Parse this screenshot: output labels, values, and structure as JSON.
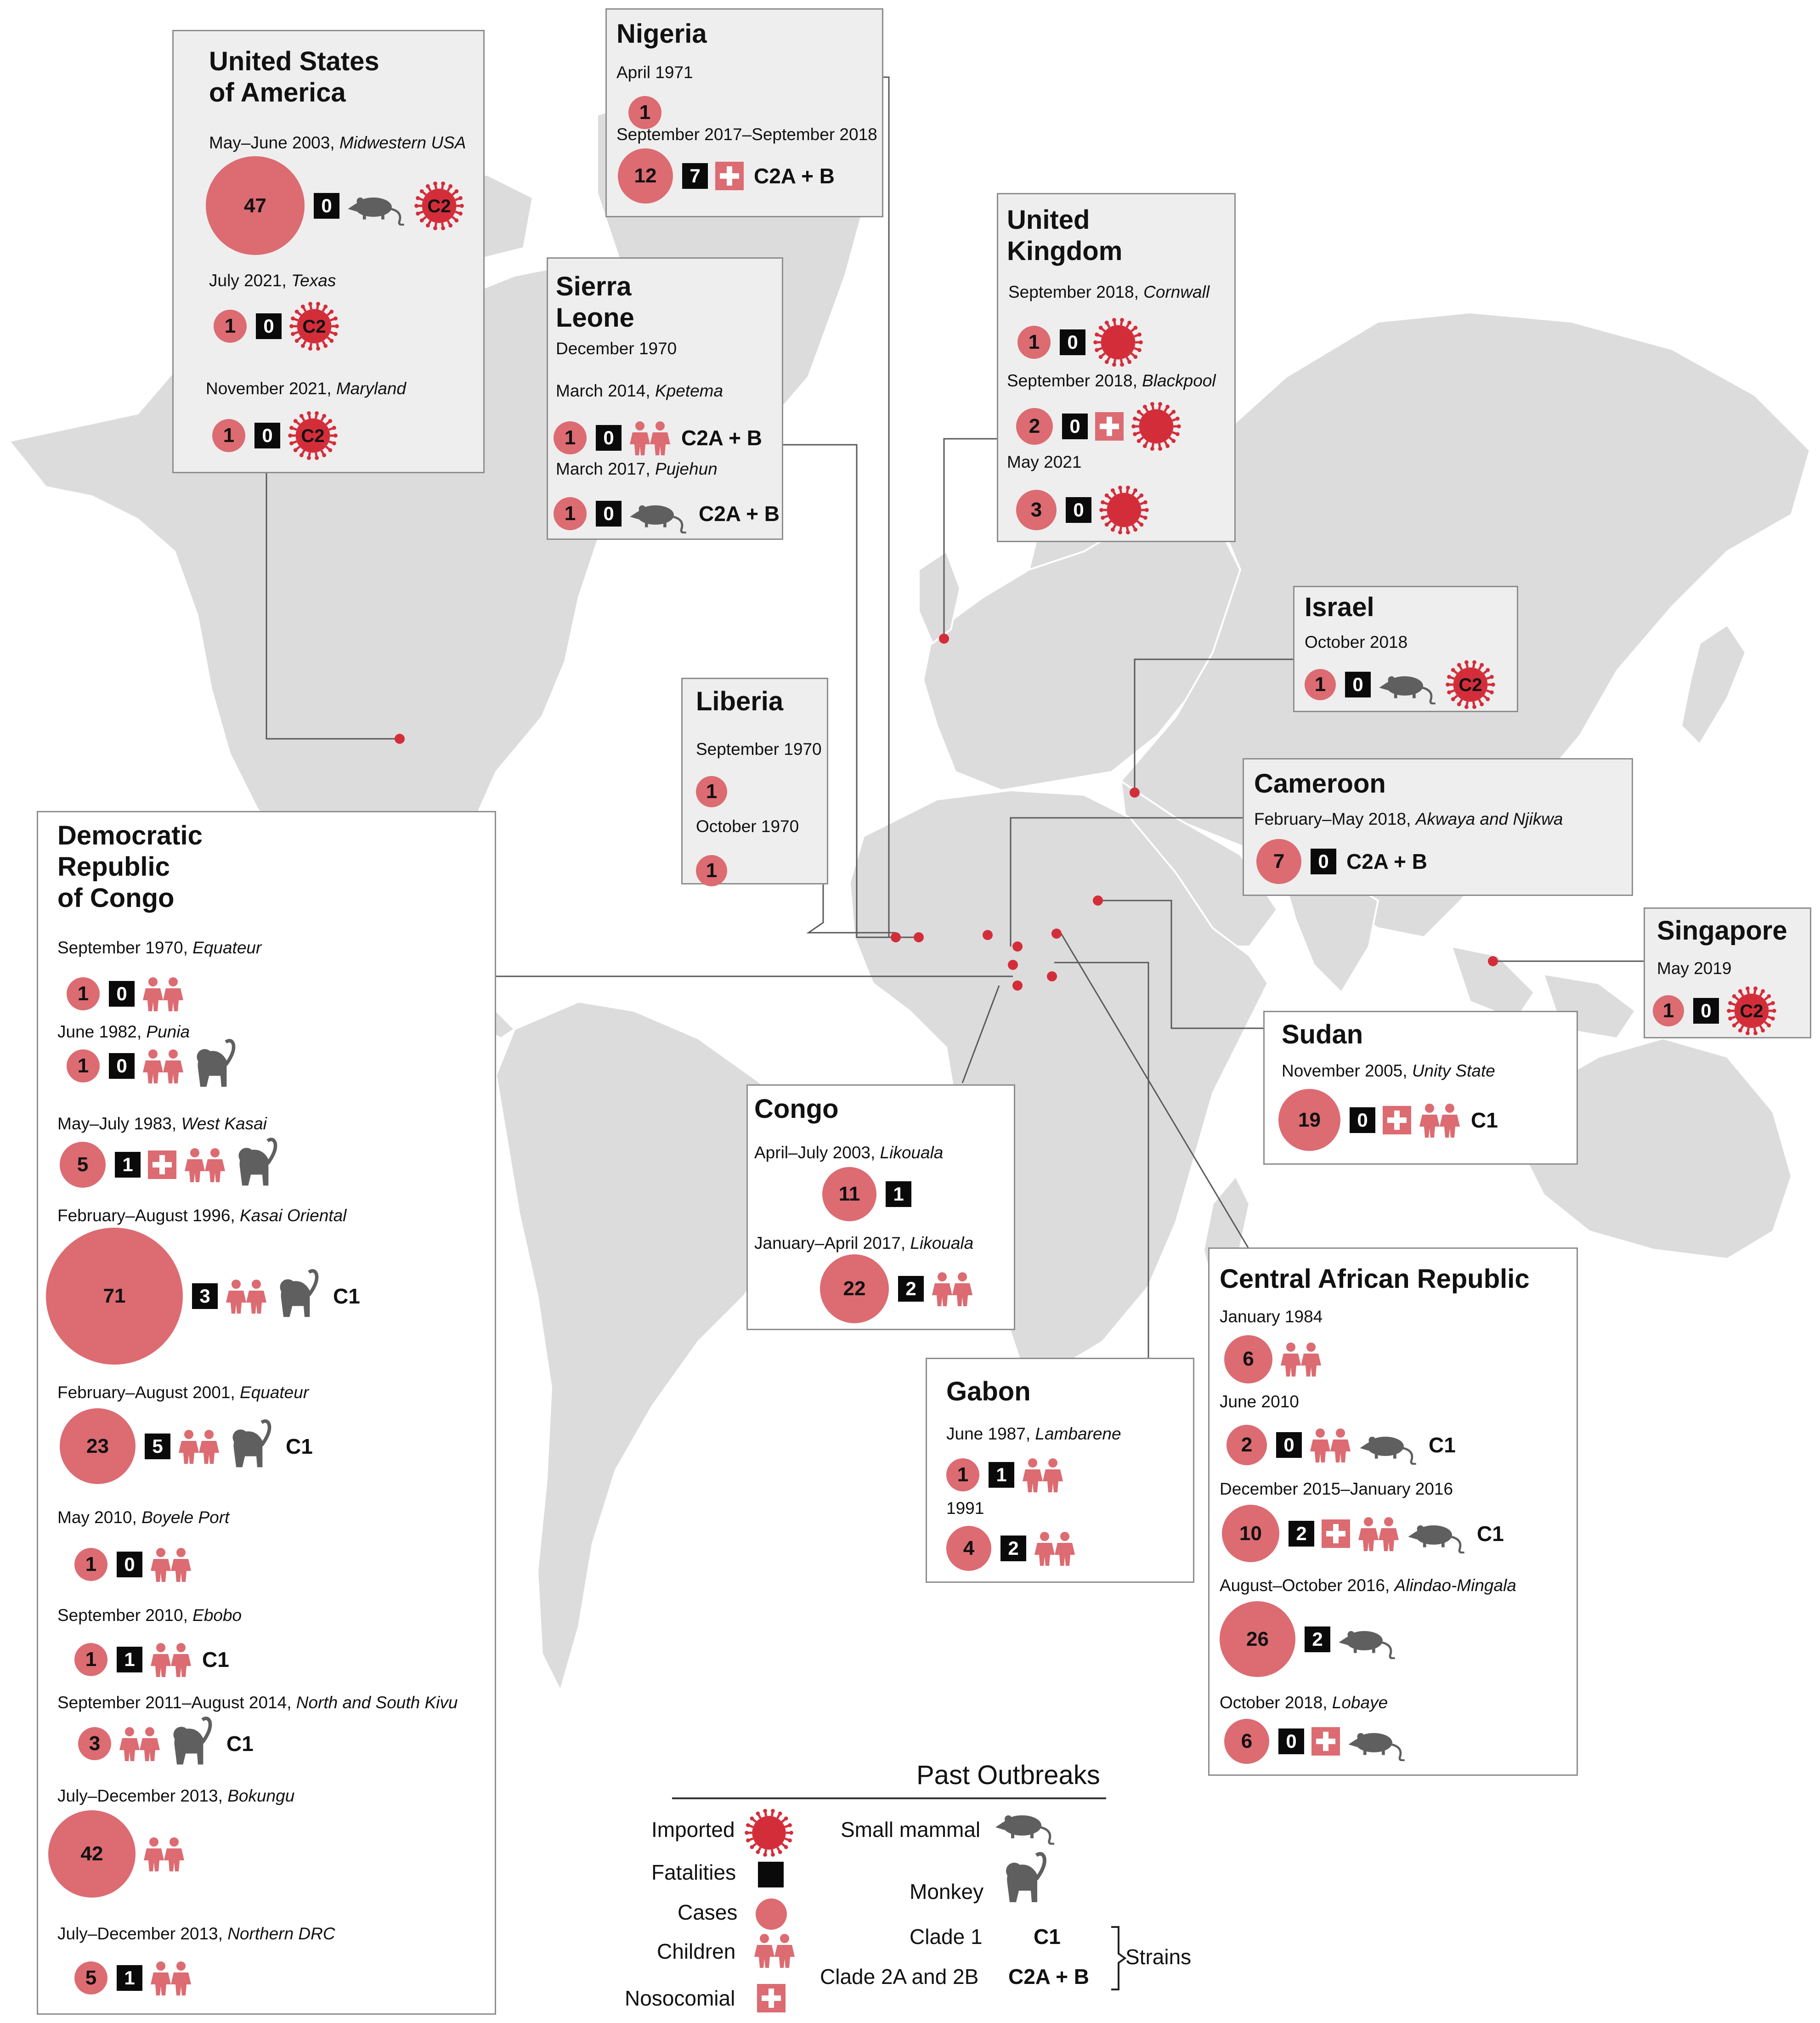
{
  "colors": {
    "case_fill": "#dc6b72",
    "imported_red": "#d42d3a",
    "fatality_black": "#0a0a0a",
    "animal_gray": "#5f5f5f",
    "land_gray": "#d9d9d9",
    "box_border": "#8e8e8e"
  },
  "icons": {
    "cases": "pink-circle-with-count",
    "fatalities": "black-square-with-count",
    "imported": "red-virus-icon",
    "children": "children-icon",
    "nosocomial": "hospital-cross-icon",
    "small_mammal": "rodent-icon",
    "monkey": "monkey-icon"
  },
  "countries": {
    "usa": {
      "title": "United States\nof America",
      "outbreaks": [
        {
          "date": "May–June 2003,",
          "place": "Midwestern USA",
          "cases": "47",
          "fatalities": "0",
          "icons": [
            "small_mammal",
            "imported"
          ],
          "imported_label": "C2"
        },
        {
          "date": "July 2021,",
          "place": "Texas",
          "cases": "1",
          "fatalities": "0",
          "icons": [
            "imported"
          ],
          "imported_label": "C2"
        },
        {
          "date": "November 2021,",
          "place": "Maryland",
          "cases": "1",
          "fatalities": "0",
          "icons": [
            "imported"
          ],
          "imported_label": "C2"
        }
      ]
    },
    "nigeria": {
      "title": "Nigeria",
      "outbreaks": [
        {
          "date": "April 1971",
          "place": "",
          "cases": "1"
        },
        {
          "date": "September 2017–September 2018",
          "place": "",
          "cases": "12",
          "fatalities": "7",
          "icons": [
            "nosocomial"
          ],
          "clade": "C2A + B"
        }
      ]
    },
    "sierra_leone": {
      "title": "Sierra\nLeone",
      "outbreaks": [
        {
          "date": "December 1970",
          "place": ""
        },
        {
          "date": "March 2014,",
          "place": "Kpetema",
          "cases": "1",
          "fatalities": "0",
          "icons": [
            "children"
          ],
          "clade": "C2A + B"
        },
        {
          "date": "March 2017,",
          "place": "Pujehun",
          "cases": "1",
          "fatalities": "0",
          "icons": [
            "small_mammal"
          ],
          "clade": "C2A + B"
        }
      ]
    },
    "uk": {
      "title": "United\nKingdom",
      "outbreaks": [
        {
          "date": "September 2018,",
          "place": "Cornwall",
          "cases": "1",
          "fatalities": "0",
          "icons": [
            "imported"
          ]
        },
        {
          "date": "September 2018,",
          "place": "Blackpool",
          "cases": "2",
          "fatalities": "0",
          "icons": [
            "nosocomial",
            "imported"
          ]
        },
        {
          "date": "May 2021",
          "place": "",
          "cases": "3",
          "fatalities": "0",
          "icons": [
            "imported"
          ]
        }
      ]
    },
    "israel": {
      "title": "Israel",
      "outbreaks": [
        {
          "date": "October 2018",
          "place": "",
          "cases": "1",
          "fatalities": "0",
          "icons": [
            "small_mammal",
            "imported"
          ],
          "imported_label": "C2"
        }
      ]
    },
    "liberia": {
      "title": "Liberia",
      "outbreaks": [
        {
          "date": "September 1970",
          "place": "",
          "cases": "1"
        },
        {
          "date": "October 1970",
          "place": "",
          "cases": "1"
        }
      ]
    },
    "cameroon": {
      "title": "Cameroon",
      "outbreaks": [
        {
          "date": "February–May 2018,",
          "place": "Akwaya and Njikwa",
          "cases": "7",
          "fatalities": "0",
          "clade": "C2A + B"
        }
      ]
    },
    "singapore": {
      "title": "Singapore",
      "outbreaks": [
        {
          "date": "May 2019",
          "place": "",
          "cases": "1",
          "fatalities": "0",
          "icons": [
            "imported"
          ],
          "imported_label": "C2"
        }
      ]
    },
    "drc": {
      "title": "Democratic\nRepublic\nof Congo",
      "outbreaks": [
        {
          "date": "September 1970,",
          "place": "Equateur",
          "cases": "1",
          "fatalities": "0",
          "icons": [
            "children"
          ]
        },
        {
          "date": "June 1982,",
          "place": "Punia",
          "cases": "1",
          "fatalities": "0",
          "icons": [
            "children",
            "monkey"
          ]
        },
        {
          "date": "May–July 1983,",
          "place": "West Kasai",
          "cases": "5",
          "fatalities": "1",
          "icons": [
            "nosocomial",
            "children",
            "monkey"
          ]
        },
        {
          "date": "February–August 1996,",
          "place": "Kasai Oriental",
          "cases": "71",
          "fatalities": "3",
          "icons": [
            "children",
            "monkey"
          ],
          "clade": "C1"
        },
        {
          "date": "February–August 2001,",
          "place": "Equateur",
          "cases": "23",
          "fatalities": "5",
          "icons": [
            "children",
            "monkey"
          ],
          "clade": "C1"
        },
        {
          "date": "May 2010,",
          "place": "Boyele Port",
          "cases": "1",
          "fatalities": "0",
          "icons": [
            "children"
          ]
        },
        {
          "date": "September 2010,",
          "place": "Ebobo",
          "cases": "1",
          "fatalities": "1",
          "icons": [
            "children"
          ],
          "clade": "C1"
        },
        {
          "date": "September 2011–August 2014,",
          "place": "North and South Kivu",
          "cases": "3",
          "icons": [
            "children",
            "monkey"
          ],
          "clade": "C1"
        },
        {
          "date": "July–December 2013,",
          "place": "Bokungu",
          "cases": "42",
          "icons": [
            "children"
          ]
        },
        {
          "date": "July–December 2013,",
          "place": "Northern DRC",
          "cases": "5",
          "fatalities": "1",
          "icons": [
            "children"
          ]
        }
      ]
    },
    "sudan": {
      "title": "Sudan",
      "outbreaks": [
        {
          "date": "November 2005,",
          "place": "Unity State",
          "cases": "19",
          "fatalities": "0",
          "icons": [
            "nosocomial",
            "children"
          ],
          "clade": "C1"
        }
      ]
    },
    "congo": {
      "title": "Congo",
      "outbreaks": [
        {
          "date": "April–July 2003,",
          "place": "Likouala",
          "cases": "11",
          "fatalities": "1"
        },
        {
          "date": "January–April 2017,",
          "place": "Likouala",
          "cases": "22",
          "fatalities": "2",
          "icons": [
            "children"
          ]
        }
      ]
    },
    "gabon": {
      "title": "Gabon",
      "outbreaks": [
        {
          "date": "June 1987,",
          "place": "Lambarene",
          "cases": "1",
          "fatalities": "1",
          "icons": [
            "children"
          ]
        },
        {
          "date": "1991",
          "place": "",
          "cases": "4",
          "fatalities": "2",
          "icons": [
            "children"
          ]
        }
      ]
    },
    "car": {
      "title": "Central African Republic",
      "outbreaks": [
        {
          "date": "January 1984",
          "place": "",
          "cases": "6",
          "icons": [
            "children"
          ]
        },
        {
          "date": "June 2010",
          "place": "",
          "cases": "2",
          "fatalities": "0",
          "icons": [
            "children",
            "small_mammal"
          ],
          "clade": "C1"
        },
        {
          "date": "December 2015–January 2016",
          "place": "",
          "cases": "10",
          "fatalities": "2",
          "icons": [
            "nosocomial",
            "children",
            "small_mammal"
          ],
          "clade": "C1"
        },
        {
          "date": "August–October 2016,",
          "place": "Alindao-Mingala",
          "cases": "26",
          "fatalities": "2",
          "icons": [
            "small_mammal"
          ]
        },
        {
          "date": "October 2018,",
          "place": "Lobaye",
          "cases": "6",
          "fatalities": "0",
          "icons": [
            "nosocomial",
            "small_mammal"
          ]
        }
      ]
    }
  },
  "legend": {
    "title": "Past Outbreaks",
    "imported": "Imported",
    "fatalities": "Fatalities",
    "cases": "Cases",
    "children": "Children",
    "nosocomial": "Nosocomial",
    "small_mammal": "Small mammal",
    "monkey": "Monkey",
    "clade1_name": "Clade 1",
    "clade1_code": "C1",
    "clade2_name": "Clade 2A and 2B",
    "clade2_code": "C2A + B",
    "strains": "Strains"
  }
}
